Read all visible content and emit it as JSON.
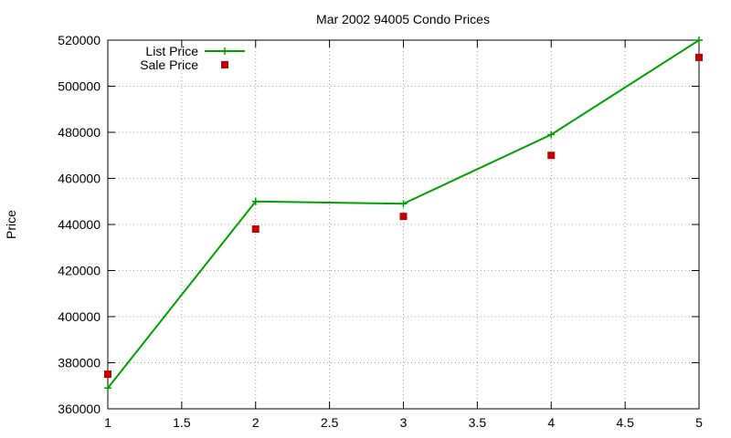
{
  "chart_data": {
    "type": "line",
    "title": "Mar 2002 94005 Condo Prices",
    "ylabel": "Price",
    "xlabel": "",
    "xlim": [
      1,
      5
    ],
    "ylim": [
      360000,
      520000
    ],
    "xticks": [
      1,
      1.5,
      2,
      2.5,
      3,
      3.5,
      4,
      4.5,
      5
    ],
    "xtick_labels": [
      "1",
      "1.5",
      "2",
      "2.5",
      "3",
      "3.5",
      "4",
      "4.5",
      "5"
    ],
    "yticks": [
      360000,
      380000,
      400000,
      420000,
      440000,
      460000,
      480000,
      500000,
      520000
    ],
    "ytick_labels": [
      "360000",
      "380000",
      "400000",
      "420000",
      "440000",
      "460000",
      "480000",
      "500000",
      "520000"
    ],
    "grid": true,
    "legend_position": "top-left",
    "series": [
      {
        "name": "List Price",
        "style": "line-with-plus-markers",
        "color": "#00a000",
        "x": [
          1,
          2,
          3,
          4,
          5
        ],
        "y": [
          369000,
          450000,
          449000,
          479000,
          520000
        ]
      },
      {
        "name": "Sale Price",
        "style": "square-markers",
        "color": "#c00000",
        "x": [
          1,
          2,
          3,
          4,
          5
        ],
        "y": [
          375000,
          438000,
          443500,
          470000,
          512500
        ]
      }
    ]
  }
}
